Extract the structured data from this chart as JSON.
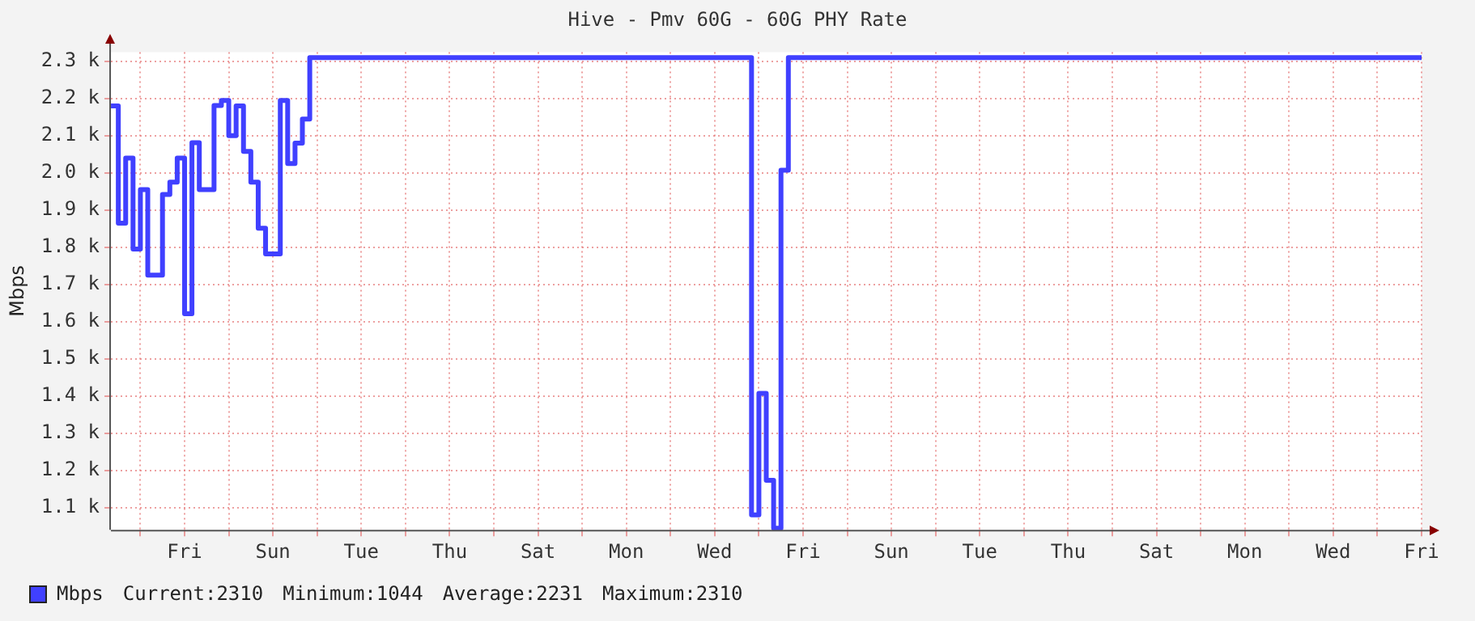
{
  "chart_data": {
    "type": "step",
    "title": "Hive - Pmv 60G - 60G PHY Rate",
    "ylabel": "Mbps",
    "categories": [
      null,
      null,
      null,
      null,
      null,
      null,
      null,
      null,
      null,
      null,
      "Fri",
      null,
      null,
      null,
      null,
      null,
      null,
      null,
      null,
      null,
      null,
      null,
      "Sun",
      null,
      null,
      null,
      null,
      null,
      null,
      null,
      null,
      null,
      null,
      null,
      "Tue",
      null,
      null,
      null,
      null,
      null,
      null,
      null,
      null,
      null,
      null,
      null,
      "Thu",
      null,
      null,
      null,
      null,
      null,
      null,
      null,
      null,
      null,
      null,
      null,
      "Sat",
      null,
      null,
      null,
      null,
      null,
      null,
      null,
      null,
      null,
      null,
      null,
      "Mon",
      null,
      null,
      null,
      null,
      null,
      null,
      null,
      null,
      null,
      null,
      null,
      "Wed",
      null,
      null,
      null,
      null,
      null,
      null,
      null,
      null,
      null,
      null,
      null,
      "Fri",
      null,
      null,
      null,
      null,
      null,
      null,
      null,
      null,
      null,
      null,
      null,
      "Sun",
      null,
      null,
      null,
      null,
      null,
      null,
      null,
      null,
      null,
      null,
      null,
      "Tue",
      null,
      null,
      null,
      null,
      null,
      null,
      null,
      null,
      null,
      null,
      null,
      "Thu",
      null,
      null,
      null,
      null,
      null,
      null,
      null,
      null,
      null,
      null,
      null,
      "Sat",
      null,
      null,
      null,
      null,
      null,
      null,
      null,
      null,
      null,
      null,
      null,
      "Mon",
      null,
      null,
      null,
      null,
      null,
      null,
      null,
      null,
      null,
      null,
      null,
      "Wed",
      null,
      null,
      null,
      null,
      null,
      null,
      null,
      null,
      null,
      null,
      null,
      "Fri"
    ],
    "series": [
      {
        "name": "Mbps",
        "color": "#4040ff",
        "values": [
          2180,
          1865,
          2040,
          1795,
          1955,
          1725,
          1725,
          1942,
          1975,
          2040,
          1621,
          2081,
          1955,
          1955,
          2181,
          2195,
          2100,
          2180,
          2058,
          1975,
          1851,
          1782,
          1782,
          2195,
          2025,
          2080,
          2145,
          2310,
          2310,
          2310,
          2310,
          2310,
          2310,
          2310,
          2310,
          2310,
          2310,
          2310,
          2310,
          2310,
          2310,
          2310,
          2310,
          2310,
          2310,
          2310,
          2310,
          2310,
          2310,
          2310,
          2310,
          2310,
          2310,
          2310,
          2310,
          2310,
          2310,
          2310,
          2310,
          2310,
          2310,
          2310,
          2310,
          2310,
          2310,
          2310,
          2310,
          2310,
          2310,
          2310,
          2310,
          2310,
          2310,
          2310,
          2310,
          2310,
          2310,
          2310,
          2310,
          2310,
          2310,
          2310,
          2310,
          2310,
          2310,
          2310,
          2310,
          1080,
          1407,
          1173,
          1044,
          2007,
          2310,
          2310,
          2310,
          2310,
          2310,
          2310,
          2310,
          2310,
          2310,
          2310,
          2310,
          2310,
          2310,
          2310,
          2310,
          2310,
          2310,
          2310,
          2310,
          2310,
          2310,
          2310,
          2310,
          2310,
          2310,
          2310,
          2310,
          2310,
          2310,
          2310,
          2310,
          2310,
          2310,
          2310,
          2310,
          2310,
          2310,
          2310,
          2310,
          2310,
          2310,
          2310,
          2310,
          2310,
          2310,
          2310,
          2310,
          2310,
          2310,
          2310,
          2310,
          2310,
          2310,
          2310,
          2310,
          2310,
          2310,
          2310,
          2310,
          2310,
          2310,
          2310,
          2310,
          2310,
          2310,
          2310,
          2310,
          2310,
          2310,
          2310,
          2310,
          2310,
          2310,
          2310,
          2310,
          2310,
          2310,
          2310,
          2310,
          2310,
          2310,
          2310,
          2310,
          2310,
          2310,
          2310,
          2310
        ]
      }
    ],
    "ylim": [
      1040,
      2325
    ],
    "yticks": [
      {
        "value": 1100,
        "label": "1.1 k"
      },
      {
        "value": 1200,
        "label": "1.2 k"
      },
      {
        "value": 1300,
        "label": "1.3 k"
      },
      {
        "value": 1400,
        "label": "1.4 k"
      },
      {
        "value": 1500,
        "label": "1.5 k"
      },
      {
        "value": 1600,
        "label": "1.6 k"
      },
      {
        "value": 1700,
        "label": "1.7 k"
      },
      {
        "value": 1800,
        "label": "1.8 k"
      },
      {
        "value": 1900,
        "label": "1.9 k"
      },
      {
        "value": 2000,
        "label": "2.0 k"
      },
      {
        "value": 2100,
        "label": "2.1 k"
      },
      {
        "value": 2200,
        "label": "2.2 k"
      },
      {
        "value": 2300,
        "label": "2.3 k"
      }
    ],
    "grid": true,
    "legend": "bottom left",
    "line_style": "solid",
    "marker": "none",
    "annotations": [
      "Current:2310",
      "Minimum:1044",
      "Average:2231",
      "Maximum:2310"
    ]
  }
}
